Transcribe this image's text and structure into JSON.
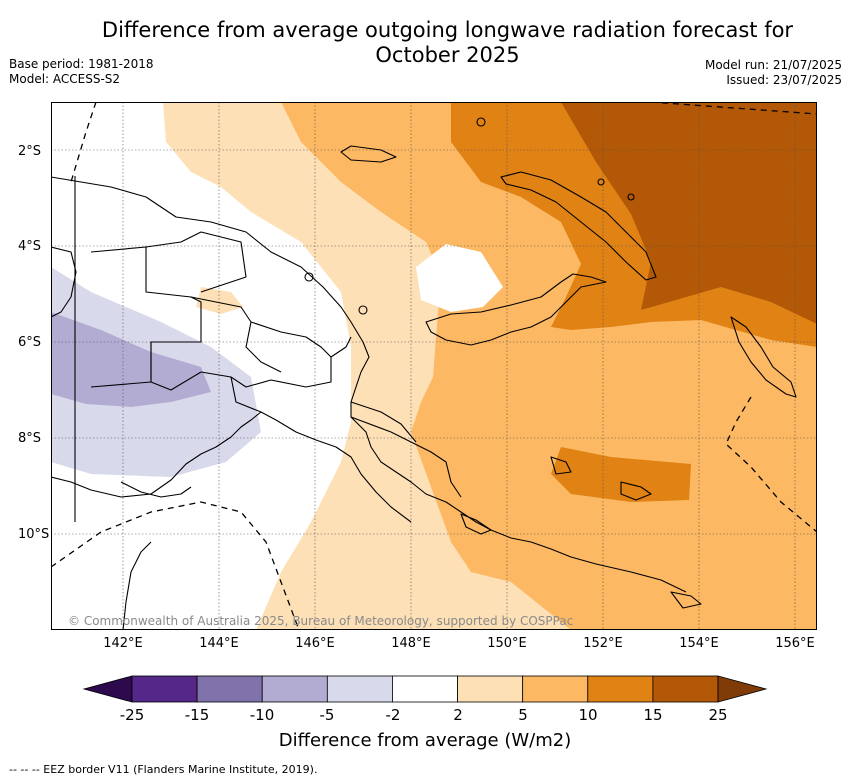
{
  "header": {
    "title_line1": "Difference from average outgoing longwave radiation forecast for",
    "title_line2": "October 2025",
    "base_period": "Base period: 1981-2018",
    "model": "Model: ACCESS-S2",
    "model_run": "Model run: 21/07/2025",
    "issued": "Issued: 23/07/2025"
  },
  "map": {
    "lat_labels": [
      "2°S",
      "4°S",
      "6°S",
      "8°S",
      "10°S"
    ],
    "lon_labels": [
      "142°E",
      "144°E",
      "146°E",
      "148°E",
      "150°E",
      "152°E",
      "154°E",
      "156°E"
    ],
    "copyright": "© Commonwealth of Australia 2025, Bureau of Meteorology, supported by COSPPac"
  },
  "colorbar": {
    "tick_labels": [
      "-25",
      "-15",
      "-10",
      "-5",
      "-2",
      "2",
      "5",
      "10",
      "15",
      "25"
    ],
    "colors": [
      "#2d0a4e",
      "#542788",
      "#8073ac",
      "#b2abd2",
      "#d8daeb",
      "#ffffff",
      "#fee0b6",
      "#fdb863",
      "#e08214",
      "#b35806",
      "#7f3b08"
    ],
    "title": "Difference from average (W/m2)"
  },
  "footnote": "--  --  -- EEZ border V11 (Flanders Marine Institute, 2019)."
}
